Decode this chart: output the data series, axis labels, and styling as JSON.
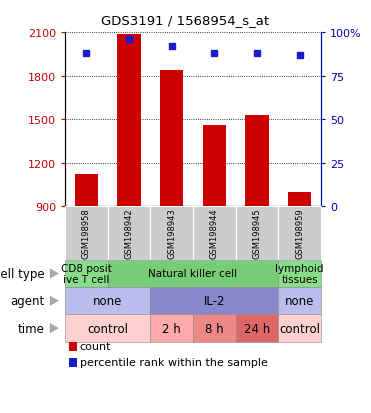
{
  "title": "GDS3191 / 1568954_s_at",
  "samples": [
    "GSM198958",
    "GSM198942",
    "GSM198943",
    "GSM198944",
    "GSM198945",
    "GSM198959"
  ],
  "counts": [
    1120,
    2090,
    1840,
    1460,
    1530,
    1000
  ],
  "percentile_ranks": [
    88,
    96,
    92,
    88,
    88,
    87
  ],
  "ylim_left": [
    900,
    2100
  ],
  "ylim_right": [
    0,
    100
  ],
  "yticks_left": [
    900,
    1200,
    1500,
    1800,
    2100
  ],
  "yticks_right": [
    0,
    25,
    50,
    75,
    100
  ],
  "bar_color": "#cc0000",
  "dot_color": "#1a1acc",
  "cell_type_labels": [
    {
      "text": "CD8 posit\nive T cell",
      "start": 0,
      "end": 1,
      "color": "#88dd88"
    },
    {
      "text": "Natural killer cell",
      "start": 1,
      "end": 5,
      "color": "#77cc77"
    },
    {
      "text": "lymphoid\ntissues",
      "start": 5,
      "end": 6,
      "color": "#88dd88"
    }
  ],
  "agent_labels": [
    {
      "text": "none",
      "start": 0,
      "end": 2,
      "color": "#bbbbee"
    },
    {
      "text": "IL-2",
      "start": 2,
      "end": 5,
      "color": "#8888cc"
    },
    {
      "text": "none",
      "start": 5,
      "end": 6,
      "color": "#bbbbee"
    }
  ],
  "time_labels": [
    {
      "text": "control",
      "start": 0,
      "end": 2,
      "color": "#ffd0d0"
    },
    {
      "text": "2 h",
      "start": 2,
      "end": 3,
      "color": "#ffaaaa"
    },
    {
      "text": "8 h",
      "start": 3,
      "end": 4,
      "color": "#ee8888"
    },
    {
      "text": "24 h",
      "start": 4,
      "end": 5,
      "color": "#dd6666"
    },
    {
      "text": "control",
      "start": 5,
      "end": 6,
      "color": "#ffd0d0"
    }
  ],
  "background_color": "#ffffff",
  "tick_label_color_left": "#cc0000",
  "tick_label_color_right": "#0000bb",
  "sample_box_color": "#cccccc",
  "label_fontsize": 8,
  "tick_fontsize": 8
}
